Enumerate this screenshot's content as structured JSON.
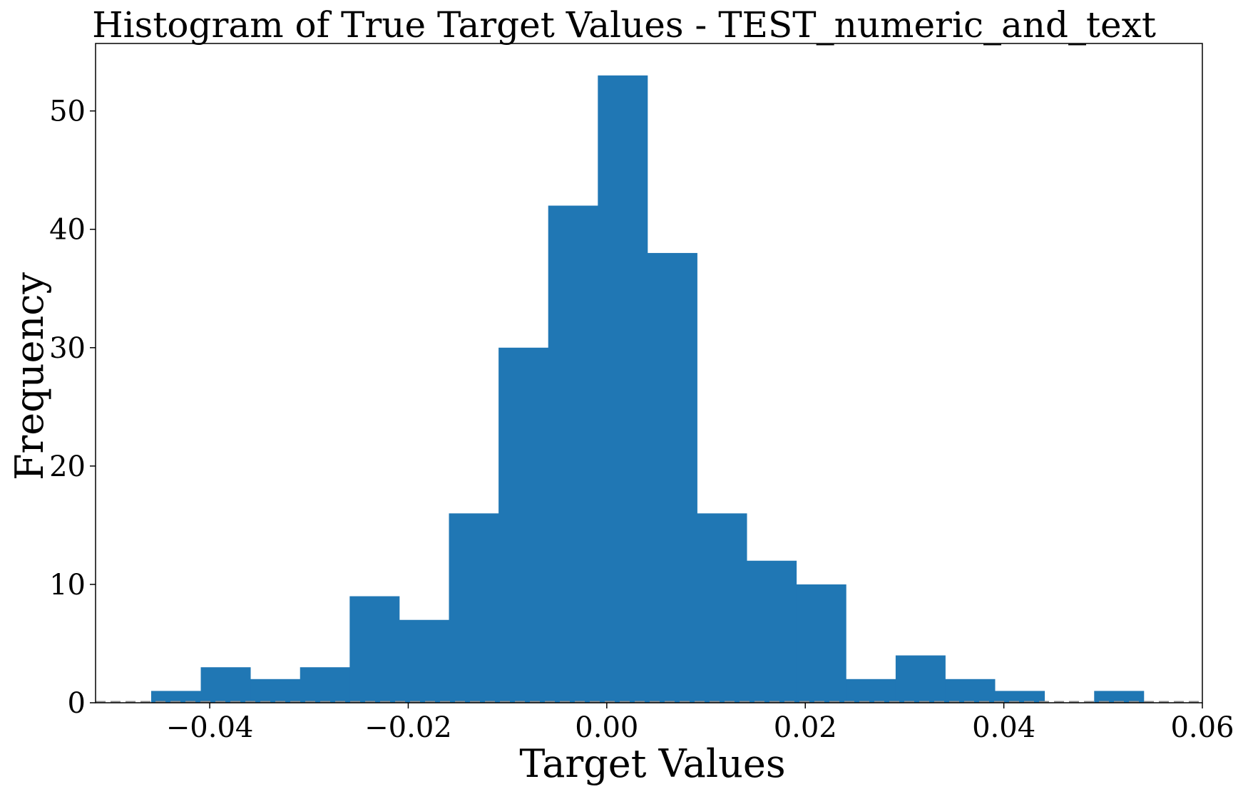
{
  "chart_data": {
    "type": "bar",
    "title": "Histogram of True Target Values - TEST_numeric_and_text",
    "xlabel": "Target Values",
    "ylabel": "Frequency",
    "bin_edges": [
      -0.0459,
      -0.0409,
      -0.0359,
      -0.0309,
      -0.0259,
      -0.0209,
      -0.0159,
      -0.0109,
      -0.0059,
      -0.0009,
      0.0041,
      0.0091,
      0.0141,
      0.0191,
      0.0241,
      0.0291,
      0.0341,
      0.0391,
      0.0441,
      0.0491,
      0.0541
    ],
    "values": [
      1,
      3,
      2,
      3,
      9,
      7,
      16,
      30,
      42,
      53,
      38,
      16,
      12,
      10,
      2,
      4,
      2,
      1,
      0,
      1
    ],
    "xlim": [
      -0.0515,
      0.06
    ],
    "ylim": [
      0,
      55.7
    ],
    "x_ticks": [
      -0.04,
      -0.02,
      0.0,
      0.02,
      0.04,
      0.06
    ],
    "x_tick_labels": [
      "−0.04",
      "−0.02",
      "0.00",
      "0.02",
      "0.04",
      "0.06"
    ],
    "y_ticks": [
      0,
      10,
      20,
      30,
      40,
      50
    ],
    "y_tick_labels": [
      "0",
      "10",
      "20",
      "30",
      "40",
      "50"
    ],
    "reference_line": {
      "y": 0,
      "style": "dashed",
      "color": "#8c8c8c"
    },
    "bar_color": "#2077b4",
    "grid": false,
    "legend": "none"
  }
}
